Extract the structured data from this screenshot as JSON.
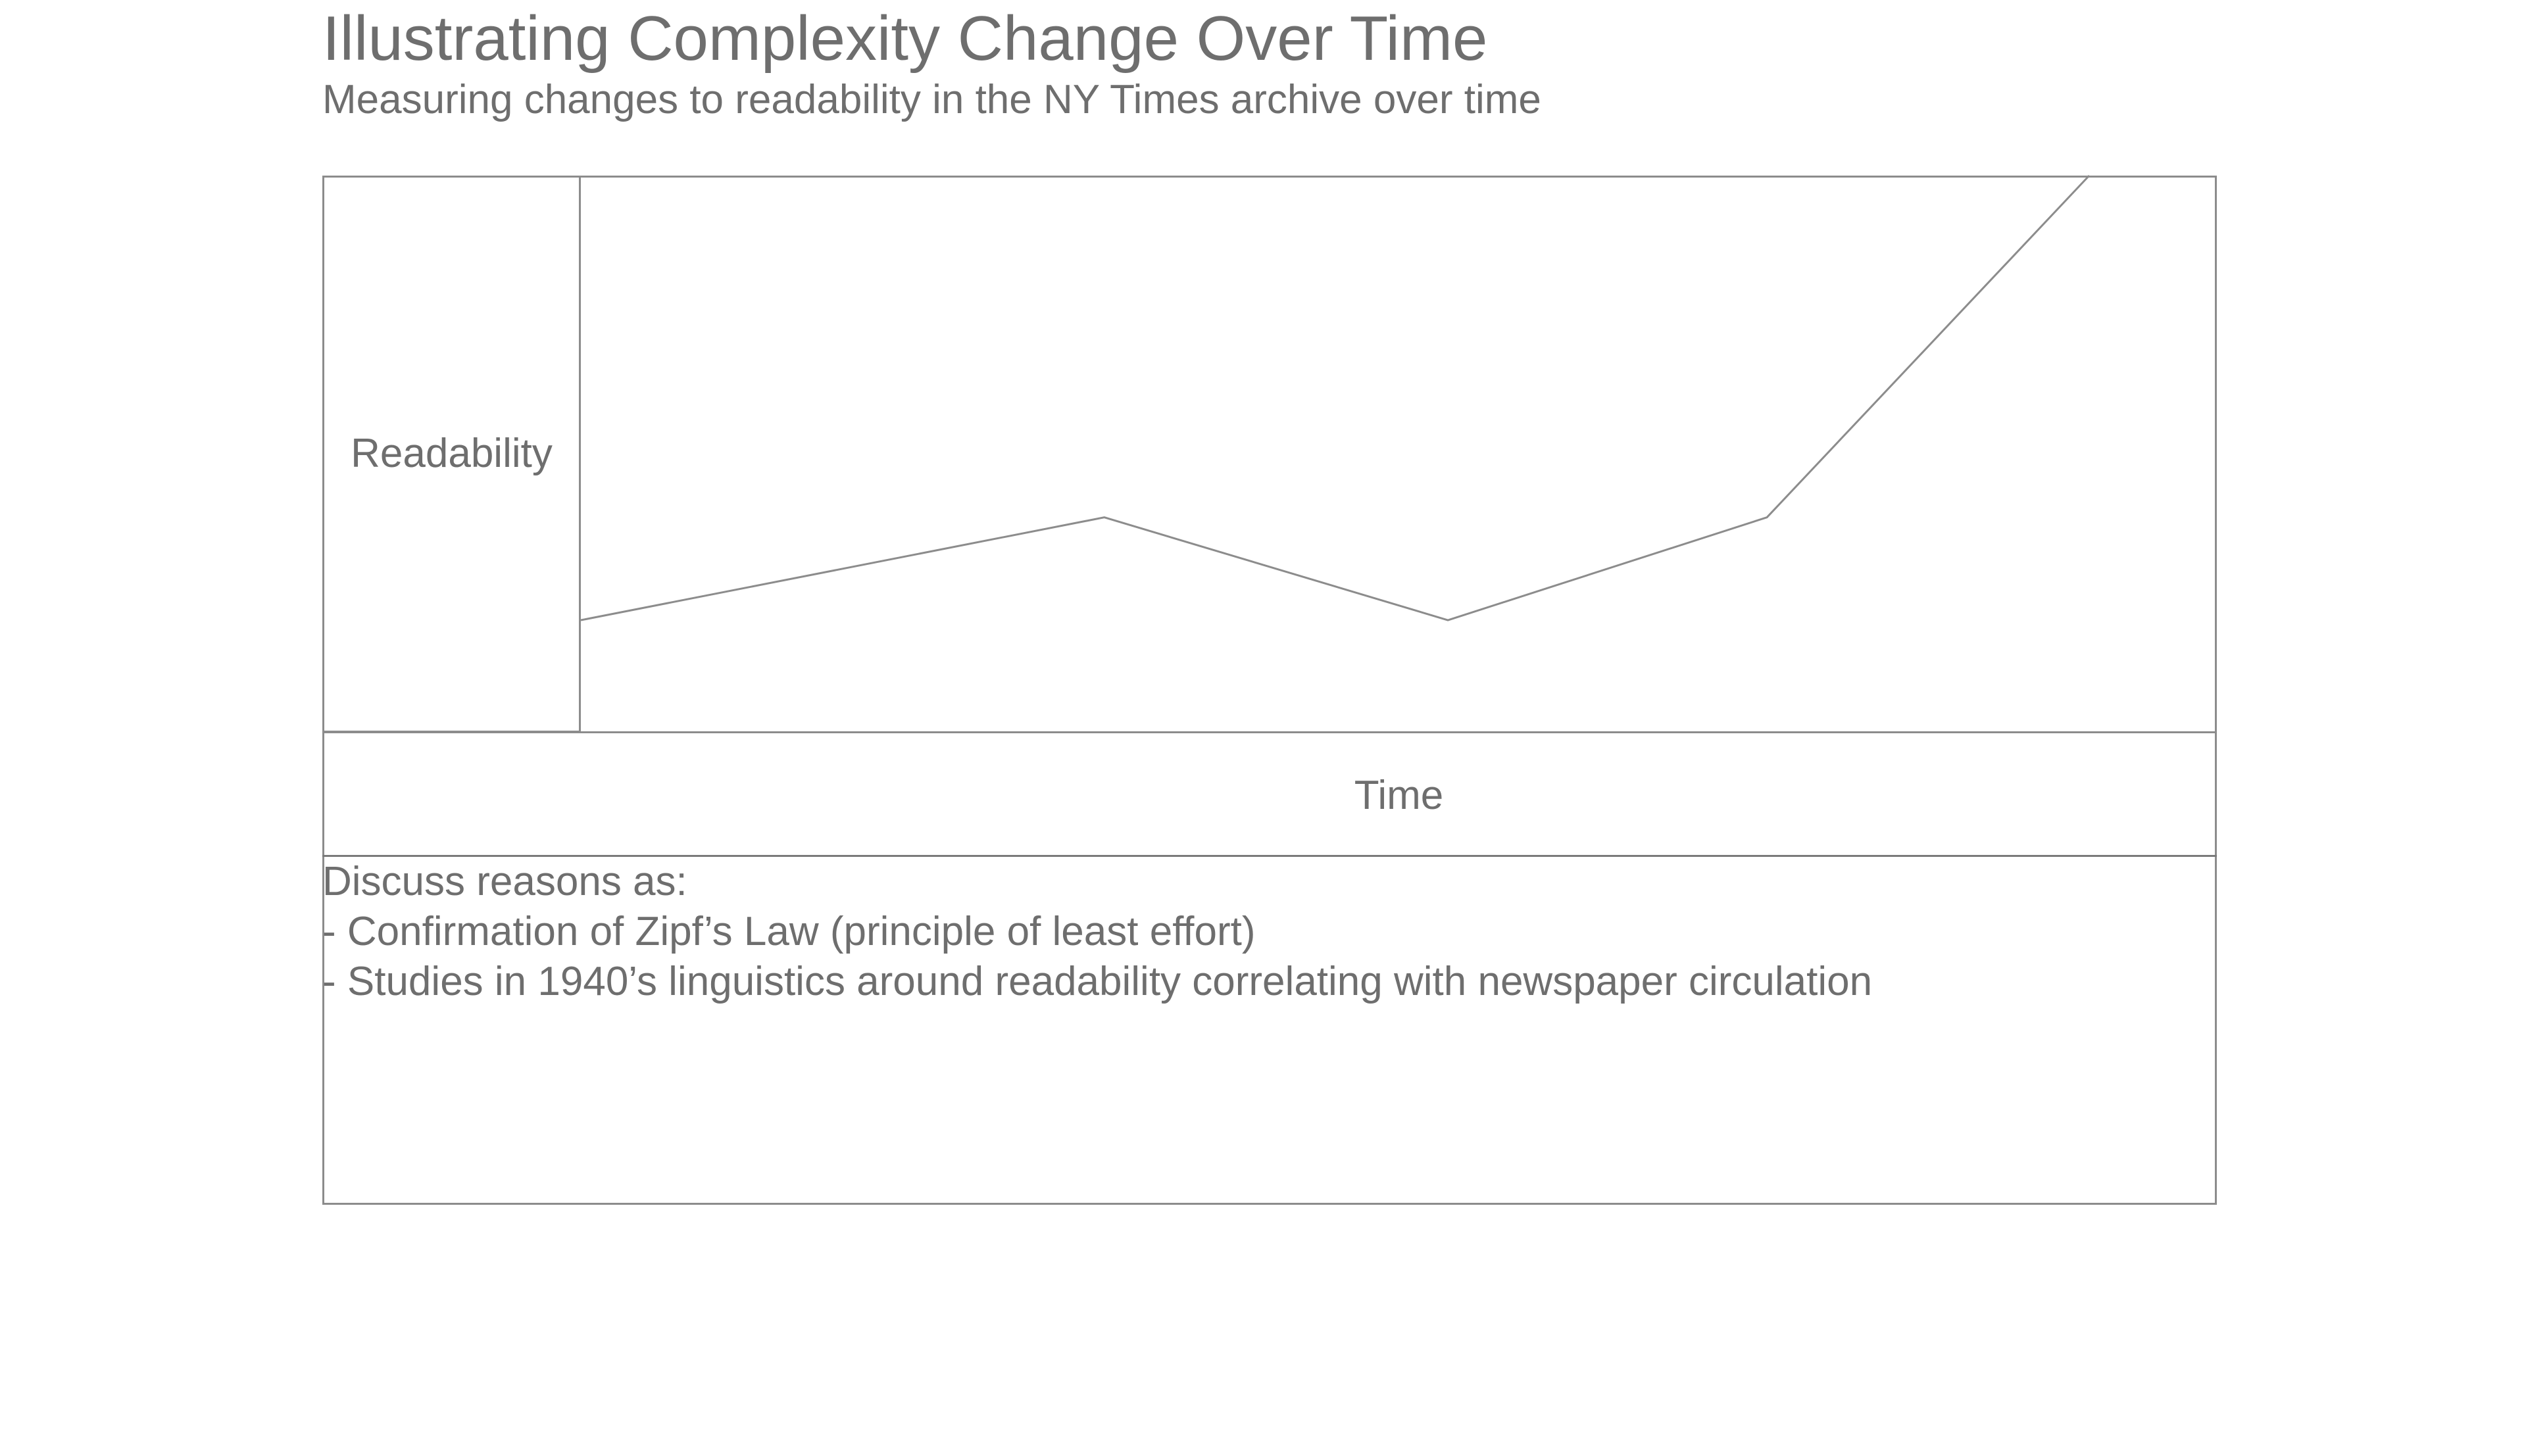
{
  "header": {
    "title": "Illustrating Complexity Change Over Time",
    "subtitle": "Measuring changes to readability in the NY Times archive over time"
  },
  "chart_data": {
    "type": "line",
    "title": "Illustrating Complexity Change Over Time",
    "subtitle": "Measuring changes to readability in the NY Times archive over time",
    "xlabel": "Time",
    "ylabel": "Readability",
    "x": [
      0,
      0.32,
      0.53,
      0.725,
      0.922
    ],
    "values": [
      0.2,
      0.385,
      0.2,
      0.385,
      1.0
    ],
    "xlim": [
      0,
      1
    ],
    "ylim": [
      0,
      1
    ],
    "grid": false,
    "colors": {
      "line": "#8c8c8c",
      "text": "#6e6e6e",
      "border": "#8c8c8c"
    }
  },
  "notes": {
    "heading": "Discuss reasons as:",
    "items": [
      "- Confirmation of Zipf’s Law (principle of least effort)",
      "- Studies in 1940’s linguistics around readability correlating with newspaper circulation"
    ]
  }
}
